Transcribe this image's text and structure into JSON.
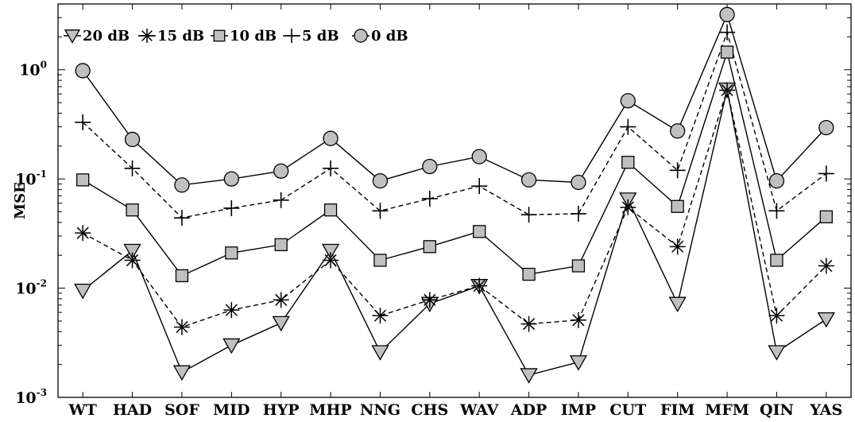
{
  "chart_data": {
    "type": "line",
    "title": "",
    "xlabel": "",
    "ylabel": "MSE",
    "yscale": "log",
    "ylim": [
      0.001,
      4
    ],
    "grid": false,
    "legend_position": "top-left",
    "y_ticks": [
      {
        "base": "10",
        "exp": "0",
        "value": 1
      },
      {
        "base": "10",
        "exp": "-1",
        "value": 0.1
      },
      {
        "base": "10",
        "exp": "-2",
        "value": 0.01
      },
      {
        "base": "10",
        "exp": "-3",
        "value": 0.001
      }
    ],
    "categories": [
      "WT",
      "HAD",
      "SOF",
      "MID",
      "HYP",
      "MHP",
      "NNG",
      "CHS",
      "WAV",
      "ADP",
      "IMP",
      "CUT",
      "FIM",
      "MFM",
      "QIN",
      "YAS"
    ],
    "series": [
      {
        "name": "20 dB",
        "marker": "triangle-down",
        "line": "solid",
        "fill": "#c0c0c0",
        "values": [
          0.0095,
          0.022,
          0.0017,
          0.003,
          0.0048,
          0.022,
          0.0026,
          0.0072,
          0.0105,
          0.0016,
          0.0021,
          0.065,
          0.0072,
          0.66,
          0.0026,
          0.0052
        ]
      },
      {
        "name": "15 dB",
        "marker": "asterisk",
        "line": "dashed",
        "fill": "none",
        "values": [
          0.032,
          0.018,
          0.0044,
          0.0063,
          0.0078,
          0.018,
          0.0056,
          0.0078,
          0.0105,
          0.0047,
          0.0051,
          0.055,
          0.024,
          0.65,
          0.0056,
          0.016
        ]
      },
      {
        "name": "10 dB",
        "marker": "square",
        "line": "solid",
        "fill": "#c0c0c0",
        "values": [
          0.098,
          0.052,
          0.013,
          0.021,
          0.025,
          0.052,
          0.018,
          0.024,
          0.033,
          0.0134,
          0.016,
          0.142,
          0.056,
          1.45,
          0.018,
          0.045
        ]
      },
      {
        "name": "5 dB",
        "marker": "plus",
        "line": "dashed",
        "fill": "none",
        "values": [
          0.33,
          0.125,
          0.044,
          0.054,
          0.064,
          0.125,
          0.051,
          0.066,
          0.086,
          0.047,
          0.048,
          0.3,
          0.12,
          2.2,
          0.051,
          0.112
        ]
      },
      {
        "name": "0 dB",
        "marker": "circle",
        "line": "solid",
        "fill": "#c0c0c0",
        "values": [
          0.98,
          0.23,
          0.088,
          0.1,
          0.118,
          0.235,
          0.096,
          0.13,
          0.16,
          0.098,
          0.093,
          0.52,
          0.275,
          3.2,
          0.096,
          0.295
        ]
      }
    ]
  }
}
